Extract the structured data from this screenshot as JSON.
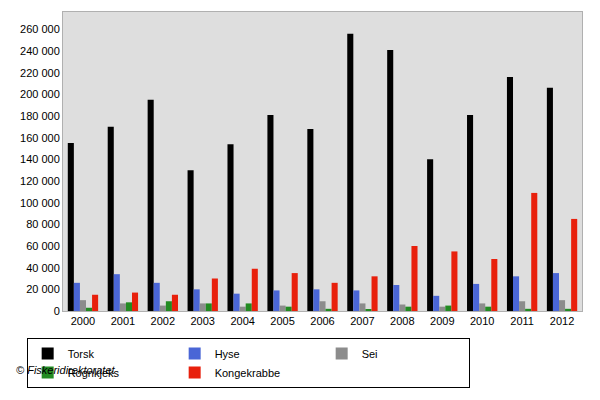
{
  "chart_data": {
    "type": "bar",
    "categories": [
      "2000",
      "2001",
      "2002",
      "2003",
      "2004",
      "2005",
      "2006",
      "2007",
      "2008",
      "2009",
      "2010",
      "2011",
      "2012"
    ],
    "series": [
      {
        "name": "Torsk",
        "color": "#000000",
        "values": [
          155000,
          170000,
          195000,
          130000,
          154000,
          181000,
          168000,
          256000,
          241000,
          140000,
          181000,
          216000,
          206000
        ]
      },
      {
        "name": "Hyse",
        "color": "#4a66d6",
        "values": [
          26000,
          34000,
          26000,
          20000,
          16000,
          19000,
          20000,
          19000,
          24000,
          14000,
          25000,
          32000,
          35000
        ]
      },
      {
        "name": "Sei",
        "color": "#8c8c8c",
        "values": [
          10000,
          7000,
          5000,
          7000,
          4000,
          5000,
          9000,
          7000,
          6000,
          4000,
          7000,
          9000,
          10000
        ]
      },
      {
        "name": "Rognkjeks",
        "color": "#228b22",
        "values": [
          3000,
          8000,
          9000,
          7000,
          7000,
          4000,
          2000,
          1000,
          4000,
          5000,
          4000,
          2000,
          2000
        ]
      },
      {
        "name": "Kongekrabbe",
        "color": "#e8200c",
        "values": [
          15000,
          17000,
          15000,
          30000,
          39000,
          35000,
          26000,
          32000,
          60000,
          55000,
          48000,
          109000,
          85000
        ]
      }
    ],
    "ylim": [
      0,
      276000
    ],
    "yticks": [
      0,
      {
        "value": 20000,
        "label": "20 000"
      },
      {
        "value": 40000,
        "label": "40 000"
      },
      {
        "value": 60000,
        "label": "60 000"
      },
      {
        "value": 80000,
        "label": "80 000"
      },
      {
        "value": 100000,
        "label": "100 000"
      },
      {
        "value": 120000,
        "label": "120 000"
      },
      {
        "value": 140000,
        "label": "140 000"
      },
      {
        "value": 160000,
        "label": "160 000"
      },
      {
        "value": 180000,
        "label": "180 000"
      },
      {
        "value": 200000,
        "label": "200 000"
      },
      {
        "value": 220000,
        "label": "220 000"
      },
      {
        "value": 240000,
        "label": "240 000"
      },
      {
        "value": 260000,
        "label": "260 000"
      }
    ],
    "grid": false,
    "legend": "bottom",
    "annotations": [
      {
        "text": "© Fiskeridirektoratet"
      }
    ]
  }
}
